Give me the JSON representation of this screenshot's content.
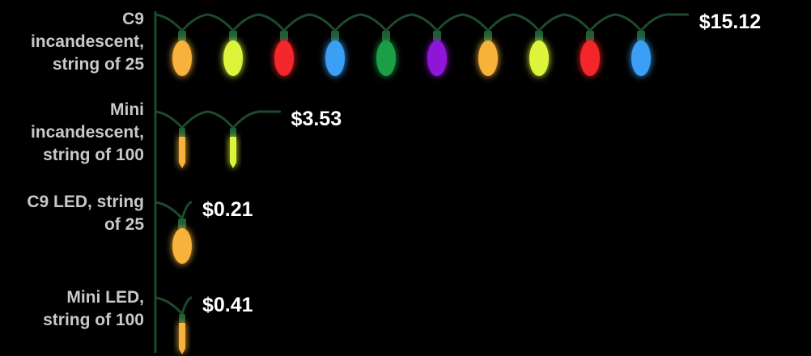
{
  "chart_data": {
    "type": "bar",
    "categories": [
      [
        "C9",
        "incandescent,",
        "string of 25"
      ],
      [
        "Mini",
        "incandescent,",
        "string of 100"
      ],
      [
        "C9 LED, string",
        "of 25"
      ],
      [
        "Mini LED,",
        "string of 100"
      ]
    ],
    "values": [
      15.12,
      3.53,
      0.21,
      0.41
    ],
    "value_labels": [
      "$15.12",
      "$3.53",
      "$0.21",
      "$0.41"
    ],
    "bulb_styles": [
      "c9",
      "mini",
      "c9",
      "mini"
    ],
    "bulb_colors": [
      "#f7b23b",
      "#dcf53a",
      "#f5282a",
      "#3aa0f5",
      "#1f9e47",
      "#8f14d9"
    ],
    "wire_color": "#1d4a2c",
    "socket_color": "#1f5e35",
    "axis_color": "#1d4a2c",
    "title": "",
    "xlabel": "",
    "ylabel": ""
  }
}
